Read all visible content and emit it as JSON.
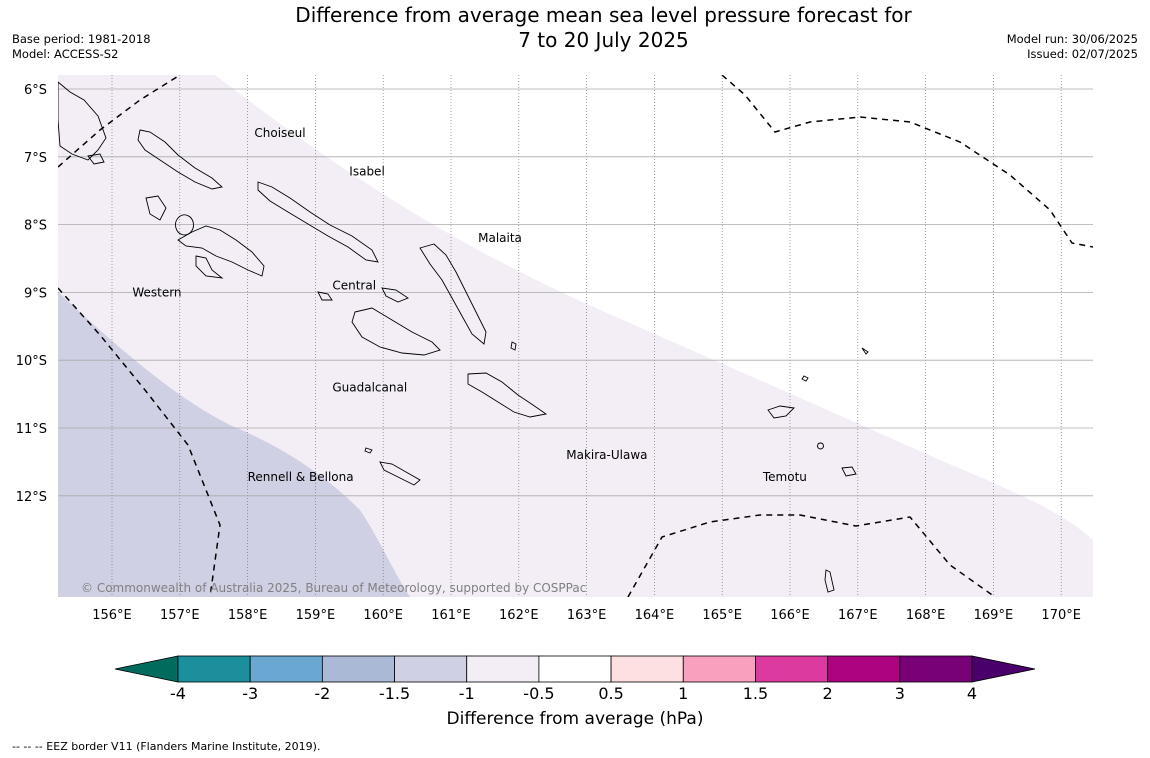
{
  "header": {
    "title_line1": "Difference from average mean sea level pressure forecast for",
    "title_line2": "7 to 20 July 2025",
    "base_period": "Base period: 1981-2018",
    "model": "Model: ACCESS-S2",
    "model_run": "Model run: 30/06/2025",
    "issued": "Issued: 02/07/2025"
  },
  "map": {
    "lat_labels": [
      "6°S",
      "7°S",
      "8°S",
      "9°S",
      "10°S",
      "11°S",
      "12°S"
    ],
    "lon_labels": [
      "156°E",
      "157°E",
      "158°E",
      "159°E",
      "160°E",
      "161°E",
      "162°E",
      "163°E",
      "164°E",
      "165°E",
      "166°E",
      "167°E",
      "168°E",
      "169°E",
      "170°E"
    ],
    "province_labels": [
      {
        "name": "Choiseul",
        "lon": 158.1,
        "lat": -6.65
      },
      {
        "name": "Isabel",
        "lon": 159.5,
        "lat": -7.22
      },
      {
        "name": "Malaita",
        "lon": 161.4,
        "lat": -8.2
      },
      {
        "name": "Central",
        "lon": 159.25,
        "lat": -8.9
      },
      {
        "name": "Western",
        "lon": 156.3,
        "lat": -9.0
      },
      {
        "name": "Guadalcanal",
        "lon": 159.25,
        "lat": -10.4
      },
      {
        "name": "Makira-Ulawa",
        "lon": 162.7,
        "lat": -11.4
      },
      {
        "name": "Temotu",
        "lon": 165.6,
        "lat": -11.72
      },
      {
        "name": "Rennell & Bellona",
        "lon": 158.0,
        "lat": -11.72
      }
    ],
    "copyright": "© Commonwealth of Australia 2025, Bureau of Meteorology, supported by COSPPac",
    "band_colors": {
      "-1.5 to -1": "#cfd0e4",
      "-1 to -0.5": "#f3edf6",
      "-0.5 to 0.5": "#ffffff"
    }
  },
  "colorbar": {
    "ticks": [
      "-4",
      "-3",
      "-2",
      "-1.5",
      "-1",
      "-0.5",
      "0.5",
      "1",
      "1.5",
      "2",
      "3",
      "4"
    ],
    "colors": [
      "#1c8f9c",
      "#6aa8d2",
      "#a9b9d6",
      "#cfd0e4",
      "#f3edf6",
      "#ffffff",
      "#fde0e1",
      "#f8a0be",
      "#dd3a9f",
      "#ad0381",
      "#780177"
    ],
    "extend_low_color": "#016b5e",
    "extend_high_color": "#4a006a",
    "label": "Difference from average (hPa)"
  },
  "footer": {
    "eez_note": "--  --  -- EEZ border V11 (Flanders Marine Institute, 2019)."
  }
}
